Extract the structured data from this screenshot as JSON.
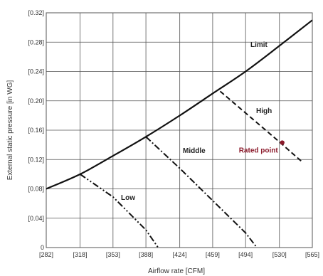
{
  "chart_data": {
    "type": "line",
    "title": "",
    "xlabel": "Airflow rate [CFM]",
    "ylabel": "External static pressure  [in WG]",
    "x_ticks": [
      282,
      318,
      353,
      388,
      424,
      459,
      494,
      530,
      565
    ],
    "x_tick_labels": [
      "[282]",
      "[318]",
      "[353]",
      "[388]",
      "[424]",
      "[459]",
      "[494]",
      "[530]",
      "[565]"
    ],
    "y_ticks": [
      0,
      0.04,
      0.08,
      0.12,
      0.16,
      0.2,
      0.24,
      0.28,
      0.32
    ],
    "y_tick_labels": [
      "0",
      "[0.04]",
      "[0.08]",
      "[0.12]",
      "[0.16]",
      "[0.20]",
      "[0.24]",
      "[0.28]",
      "[0.32]"
    ],
    "xlim": [
      282,
      565
    ],
    "ylim": [
      0,
      0.32
    ],
    "grid": true,
    "series": [
      {
        "name": "Limit",
        "style": "solid",
        "x": [
          282,
          318,
          353,
          388,
          424,
          459,
          494,
          530,
          565
        ],
        "y": [
          0.08,
          0.1,
          0.125,
          0.151,
          0.18,
          0.21,
          0.24,
          0.275,
          0.31
        ]
      },
      {
        "name": "High",
        "style": "dashed",
        "x": [
          467,
          530,
          554
        ],
        "y": [
          0.213,
          0.144,
          0.117
        ]
      },
      {
        "name": "Middle",
        "style": "dash-dot",
        "x": [
          388,
          424,
          459,
          494,
          506
        ],
        "y": [
          0.151,
          0.108,
          0.064,
          0.02,
          0
        ]
      },
      {
        "name": "Low",
        "style": "dash-dot-dot",
        "x": [
          318,
          353,
          388,
          401
        ],
        "y": [
          0.1,
          0.069,
          0.024,
          0
        ]
      }
    ],
    "rated_point": {
      "name": "Rated point",
      "x": 533,
      "y": 0.143,
      "color": "#8b1a2b"
    },
    "line_color": "#111111",
    "grid_color": "#555555"
  }
}
